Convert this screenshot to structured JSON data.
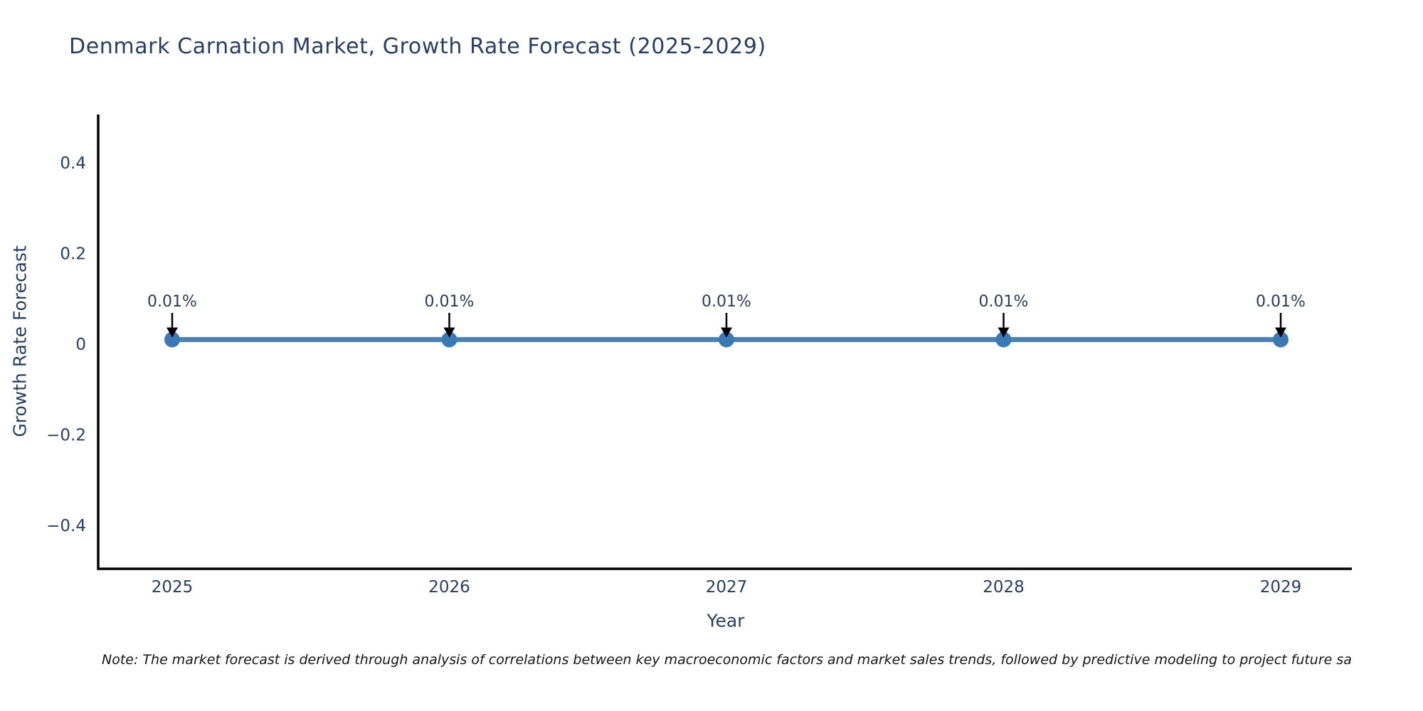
{
  "title": "Denmark Carnation Market, Growth Rate Forecast (2025-2029)",
  "note": "Note: The market forecast is derived through analysis of correlations between key macroeconomic factors and market sales trends, followed by predictive modeling to project future sa",
  "chart_data": {
    "type": "line",
    "title": "Denmark Carnation Market, Growth Rate Forecast (2025-2029)",
    "xlabel": "Year",
    "ylabel": "Growth Rate Forecast",
    "x": [
      2025,
      2026,
      2027,
      2028,
      2029
    ],
    "xtick_labels": [
      "2025",
      "2026",
      "2027",
      "2028",
      "2029"
    ],
    "series": [
      {
        "name": "Growth Rate Forecast",
        "values": [
          0.01,
          0.01,
          0.01,
          0.01,
          0.01
        ]
      }
    ],
    "annotations": [
      "0.01%",
      "0.01%",
      "0.01%",
      "0.01%",
      "0.01%"
    ],
    "ylim": [
      -0.5,
      0.51
    ],
    "yticks": [
      0.4,
      0.2,
      0,
      -0.2,
      -0.4
    ],
    "ytick_labels": [
      "0.4",
      "0.2",
      "0",
      "−0.2",
      "−0.4"
    ],
    "grid": false,
    "legend_position": "none",
    "colors": {
      "line": "#4e7fae",
      "marker": "#3b79b5",
      "axis": "#000000",
      "text": "#2a3f5f",
      "arrow": "#000000",
      "background": "#ffffff"
    }
  }
}
